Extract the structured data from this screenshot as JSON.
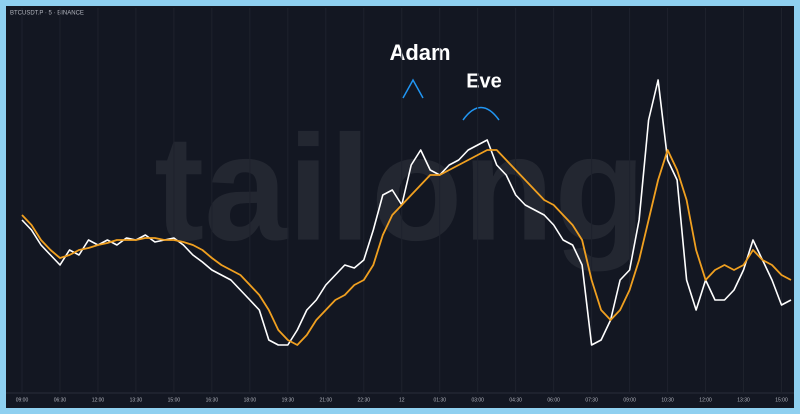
{
  "chart_data": {
    "type": "line",
    "title": "BTCUSDT.P · 5 · BINANCE",
    "watermark": "tailong",
    "annotations": [
      "Adam",
      "Eve"
    ],
    "categories": [
      "09:00",
      null,
      null,
      null,
      "06:30",
      null,
      null,
      null,
      "12:00",
      null,
      null,
      null,
      "13:30",
      null,
      null,
      null,
      "15:00",
      null,
      null,
      null,
      "16:30",
      null,
      null,
      null,
      "18:00",
      null,
      null,
      null,
      "19:30",
      null,
      null,
      null,
      "21:00",
      null,
      null,
      null,
      "22:30",
      null,
      null,
      null,
      "12",
      null,
      null,
      null,
      "01:30",
      null,
      null,
      null,
      "03:00",
      null,
      null,
      null,
      "04:30",
      null,
      null,
      null,
      "06:00",
      null,
      null,
      null,
      "07:30",
      null,
      null,
      null,
      "09:00",
      null,
      null,
      null,
      "10:30",
      null,
      null,
      null,
      "12:00",
      null,
      null,
      null,
      "13:30",
      null,
      null,
      null,
      "15:00",
      null
    ],
    "series": [
      {
        "color": "#ffffff",
        "values": [
          170,
          160,
          145,
          135,
          125,
          140,
          135,
          150,
          145,
          150,
          145,
          152,
          150,
          155,
          148,
          150,
          152,
          145,
          135,
          128,
          120,
          115,
          110,
          100,
          90,
          80,
          50,
          45,
          45,
          60,
          80,
          90,
          105,
          115,
          125,
          122,
          130,
          160,
          195,
          200,
          185,
          225,
          240,
          220,
          215,
          225,
          230,
          240,
          245,
          250,
          225,
          215,
          195,
          185,
          180,
          175,
          165,
          150,
          145,
          125,
          45,
          50,
          70,
          110,
          120,
          170,
          270,
          310,
          230,
          210,
          110,
          80,
          110,
          90,
          90,
          100,
          120,
          150,
          130,
          110,
          85,
          90
        ]
      },
      {
        "color": "#f0a020",
        "values": [
          175,
          165,
          150,
          140,
          132,
          135,
          140,
          142,
          145,
          147,
          150,
          150,
          150,
          152,
          152,
          150,
          150,
          148,
          145,
          140,
          132,
          125,
          120,
          115,
          105,
          95,
          80,
          60,
          50,
          45,
          55,
          70,
          80,
          90,
          95,
          105,
          110,
          125,
          155,
          175,
          185,
          195,
          205,
          215,
          215,
          220,
          225,
          230,
          235,
          240,
          240,
          230,
          220,
          210,
          200,
          190,
          185,
          175,
          165,
          150,
          110,
          80,
          70,
          80,
          100,
          130,
          170,
          210,
          240,
          220,
          190,
          140,
          110,
          120,
          125,
          120,
          125,
          140,
          130,
          125,
          115,
          110
        ]
      }
    ],
    "ylim": [
      0,
      380
    ],
    "grid": true
  }
}
